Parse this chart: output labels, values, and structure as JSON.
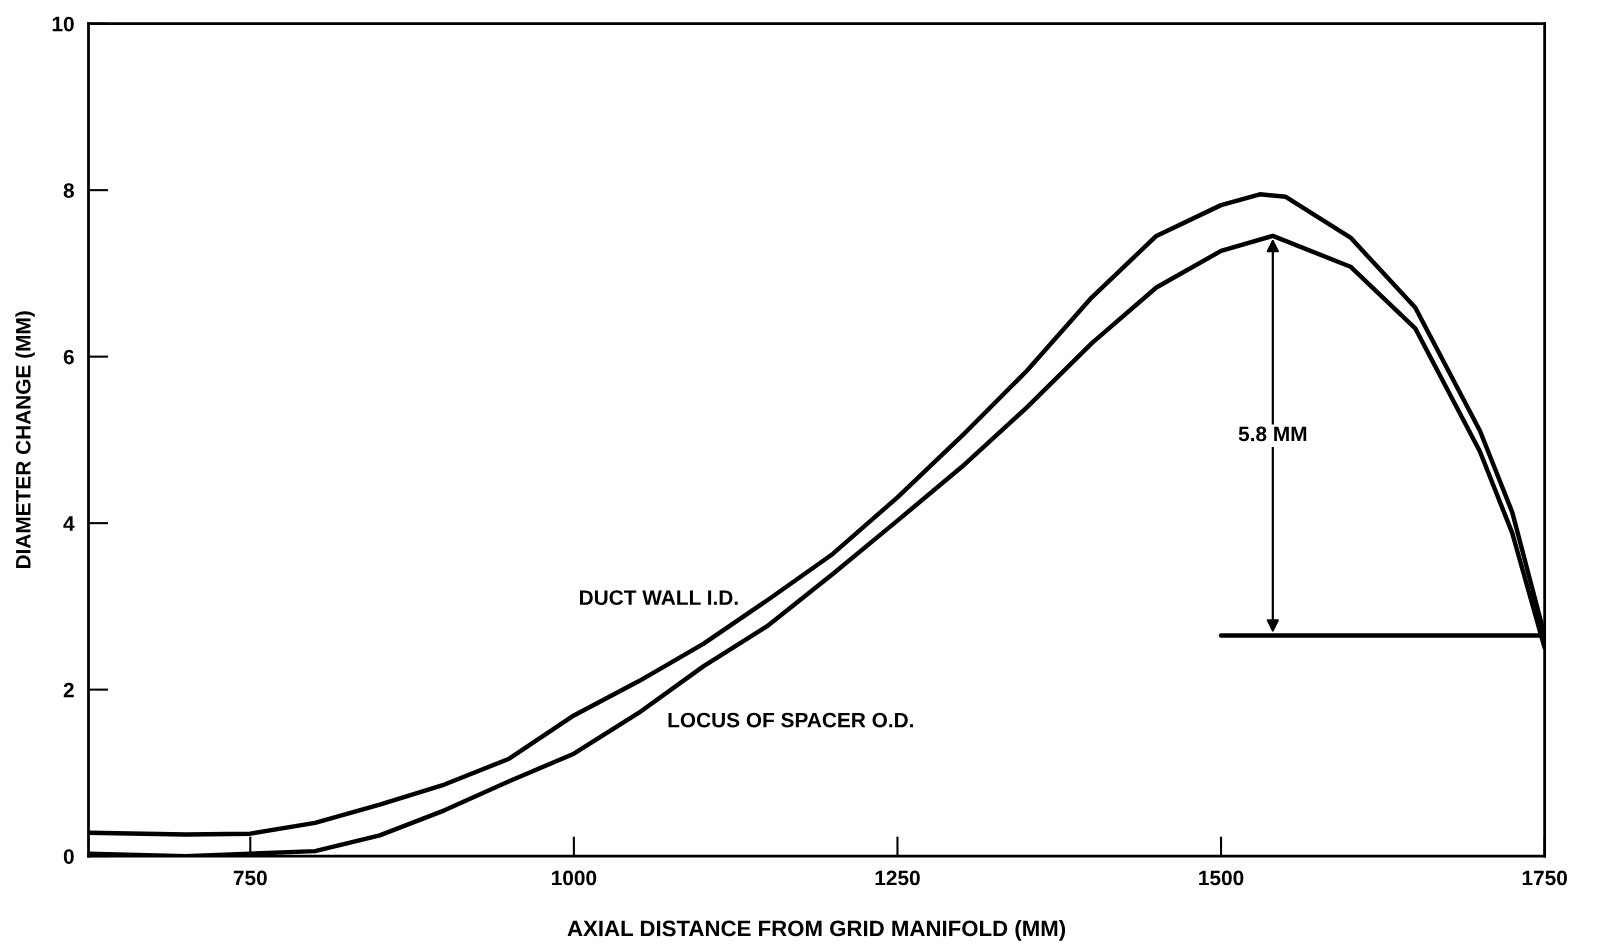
{
  "chart_data": {
    "type": "line",
    "xlabel": "AXIAL DISTANCE FROM GRID MANIFOLD (MM)",
    "ylabel": "DIAMETER CHANGE (MM)",
    "xlim": [
      625,
      1750
    ],
    "xticks": [
      750,
      1000,
      1250,
      1500,
      1750
    ],
    "ylim": [
      0,
      10
    ],
    "yticks": [
      0,
      2,
      4,
      6,
      8,
      10
    ],
    "grid": false,
    "marker": "none",
    "line_style": "solid",
    "series": [
      {
        "name": "DUCT WALL I.D.",
        "color": "#000000",
        "x": [
          625,
          700,
          750,
          800,
          850,
          900,
          950,
          1000,
          1050,
          1100,
          1150,
          1200,
          1250,
          1300,
          1350,
          1400,
          1450,
          1500,
          1530,
          1550,
          1600,
          1650,
          1700,
          1725,
          1750
        ],
        "values": [
          0.28,
          0.26,
          0.27,
          0.4,
          0.62,
          0.86,
          1.17,
          1.69,
          2.1,
          2.55,
          3.08,
          3.63,
          4.31,
          5.05,
          5.83,
          6.71,
          7.45,
          7.82,
          7.95,
          7.92,
          7.43,
          6.59,
          5.11,
          4.13,
          2.65
        ]
      },
      {
        "name": "LOCUS OF SPACER O.D.",
        "color": "#000000",
        "x": [
          625,
          700,
          750,
          800,
          850,
          900,
          950,
          1000,
          1050,
          1100,
          1150,
          1200,
          1250,
          1300,
          1350,
          1400,
          1450,
          1500,
          1540,
          1600,
          1650,
          1700,
          1725,
          1750
        ],
        "values": [
          0.03,
          0.0,
          0.03,
          0.06,
          0.25,
          0.55,
          0.9,
          1.23,
          1.72,
          2.28,
          2.77,
          3.39,
          4.03,
          4.68,
          5.39,
          6.16,
          6.83,
          7.27,
          7.45,
          7.08,
          6.34,
          4.86,
          3.88,
          2.5
        ]
      },
      {
        "color": "#000000",
        "x": [
          1500,
          1750
        ],
        "values": [
          2.65,
          2.65
        ]
      }
    ],
    "annotations": [
      "5.8 MM"
    ]
  }
}
